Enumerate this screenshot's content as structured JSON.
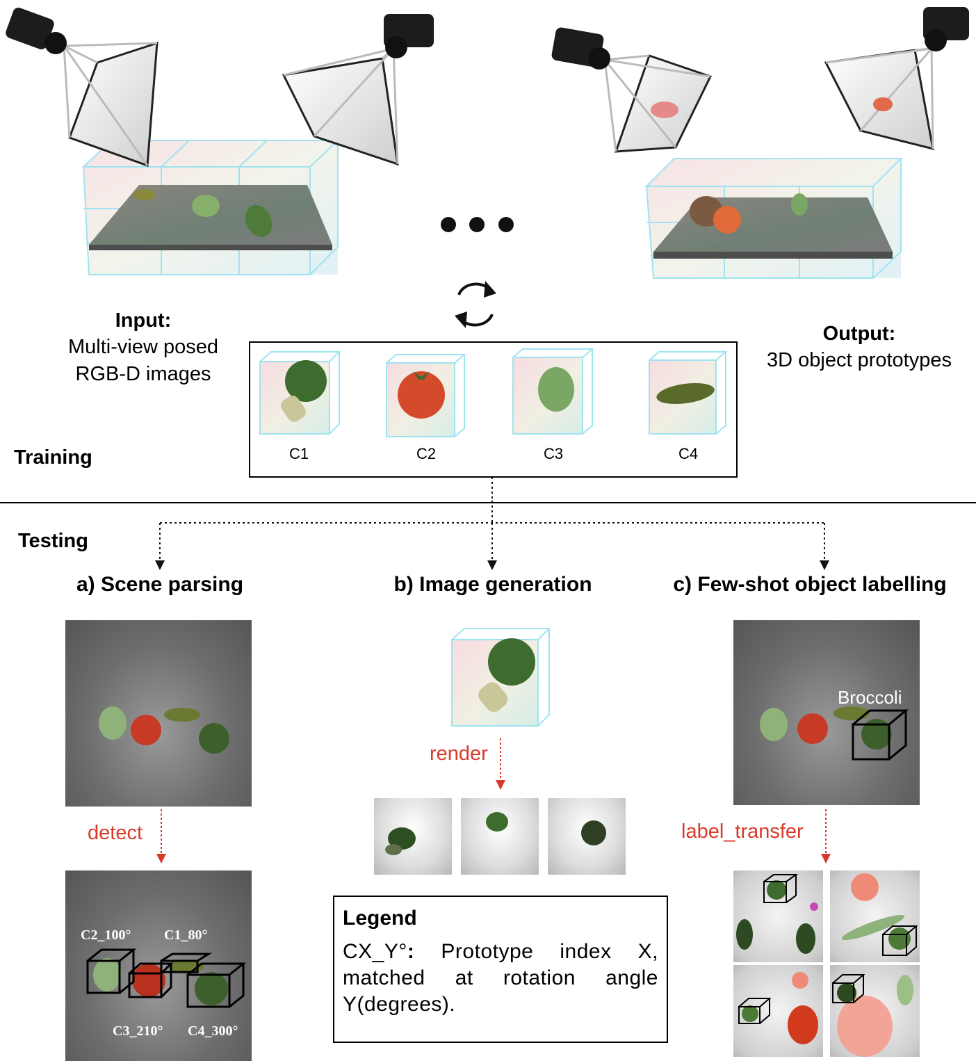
{
  "training": {
    "section_label": "Training",
    "input_title": "Input:",
    "input_line1": "Multi-view posed",
    "input_line2": "RGB-D images",
    "output_title": "Output:",
    "output_line1": "3D object prototypes",
    "prototypes": [
      {
        "label": "C1",
        "object": "broccoli"
      },
      {
        "label": "C2",
        "object": "tomato"
      },
      {
        "label": "C3",
        "object": "lettuce"
      },
      {
        "label": "C4",
        "object": "cucumber"
      }
    ]
  },
  "testing": {
    "section_label": "Testing",
    "panel_a": {
      "title": "a) Scene parsing",
      "arrow_label": "detect",
      "detections": [
        "C2_100°",
        "C1_80°",
        "C3_210°",
        "C4_300°"
      ]
    },
    "panel_b": {
      "title": "b) Image generation",
      "arrow_label": "render"
    },
    "panel_c": {
      "title": "c) Few-shot object labelling",
      "arrow_label": "label_transfer",
      "object_label": "Broccoli"
    }
  },
  "legend": {
    "title": "Legend",
    "key": "CX_Y°",
    "colon": ":",
    "text": " Prototype index X, matched at rotation angle Y(degrees)."
  },
  "colors": {
    "accent_red": "#d83a2a",
    "grid_cyan": "#9fe3f2",
    "broccoli": "#3e6b2e",
    "tomato": "#d64a2c"
  }
}
